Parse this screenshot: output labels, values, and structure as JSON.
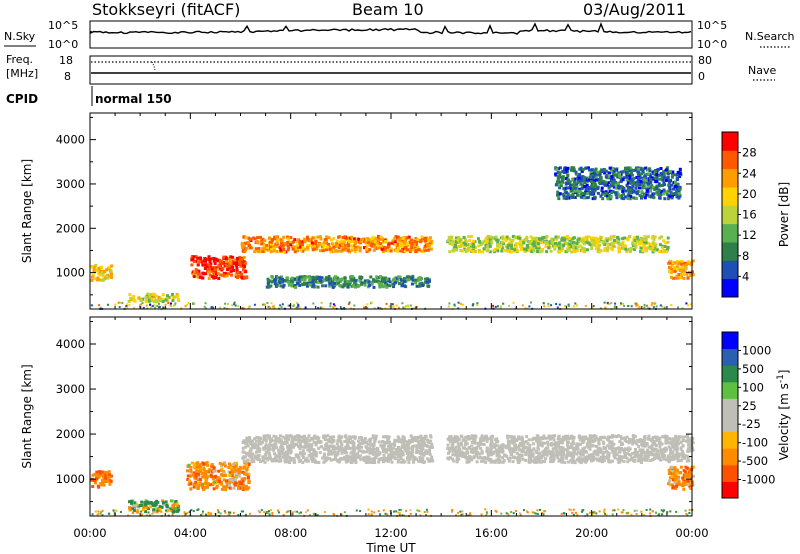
{
  "header": {
    "station": "Stokkseyri (fitACF)",
    "beam": "Beam 10",
    "date": "03/Aug/2011"
  },
  "side_labels": {
    "nsky": "N.Sky",
    "freq": "Freq.",
    "freq_unit": "[MHz]",
    "cpid": "CPID",
    "nsearch": "N.Search",
    "nave": "Nave",
    "nsky_top": "10^5",
    "nsky_bottom": "10^0",
    "nsearch_top": "10^5",
    "nsearch_bottom": "10^0",
    "freq_top": "18",
    "freq_bottom": "8",
    "nave_top": "80",
    "nave_bottom": "0"
  },
  "cpid_text": "normal 150",
  "colors": {
    "power_scale": [
      "#0000ff",
      "#1e4fb4",
      "#2f7f4a",
      "#59b050",
      "#bcd33a",
      "#ffd200",
      "#ff9c00",
      "#ff5a00",
      "#ff0000"
    ],
    "velocity_scale": [
      "#ff0000",
      "#ff5000",
      "#ff8c00",
      "#ffb400",
      "#bfbfb7",
      "#bfbfb7",
      "#5ec040",
      "#2b8a4a",
      "#2b5fb0",
      "#0000ff"
    ]
  },
  "chart_data": [
    {
      "type": "heatmap",
      "name": "power",
      "ylabel": "Slant Range [km]",
      "xlabel": "",
      "yticks": [
        1000,
        2000,
        3000,
        4000
      ],
      "ylim": [
        180,
        4600
      ],
      "xlim": [
        "00:00",
        "24:00"
      ],
      "colorbar": {
        "label": "Power [dB]",
        "ticks": [
          "4",
          "8",
          "12",
          "16",
          "20",
          "24",
          "28"
        ],
        "range": [
          0,
          32
        ]
      },
      "regions": [
        {
          "t0": 4.0,
          "t1": 6.2,
          "r0": 900,
          "r1": 1400,
          "value": 29
        },
        {
          "t0": 6.0,
          "t1": 13.6,
          "r0": 1500,
          "r1": 1850,
          "value": 24
        },
        {
          "t0": 14.2,
          "t1": 23.0,
          "r0": 1500,
          "r1": 1850,
          "value": 16
        },
        {
          "t0": 23.0,
          "t1": 24.0,
          "r0": 900,
          "r1": 1300,
          "value": 22
        },
        {
          "t0": 0.0,
          "t1": 0.8,
          "r0": 850,
          "r1": 1200,
          "value": 20
        },
        {
          "t0": 1.5,
          "t1": 3.5,
          "r0": 380,
          "r1": 550,
          "value": 17
        },
        {
          "t0": 7.0,
          "t1": 13.5,
          "r0": 700,
          "r1": 950,
          "value": 9
        },
        {
          "t0": 18.5,
          "t1": 23.5,
          "r0": 2700,
          "r1": 3400,
          "value": 7
        }
      ]
    },
    {
      "type": "heatmap",
      "name": "velocity",
      "ylabel": "Slant Range [km]",
      "xlabel": "Time UT",
      "yticks": [
        1000,
        2000,
        3000,
        4000
      ],
      "ylim": [
        180,
        4600
      ],
      "xticks": [
        "00:00",
        "04:00",
        "08:00",
        "12:00",
        "16:00",
        "20:00",
        "00:00"
      ],
      "xlim": [
        "00:00",
        "24:00"
      ],
      "colorbar": {
        "label": "Velocity [m s-1]",
        "label_main": "Velocity [m s",
        "label_sup": "-1",
        "label_end": "]",
        "ticks": [
          "-1000",
          "-500",
          "-100",
          "-25",
          "25",
          "100",
          "500",
          "1000"
        ]
      },
      "regions": [
        {
          "t0": 3.8,
          "t1": 6.3,
          "r0": 800,
          "r1": 1400,
          "value": -300
        },
        {
          "t0": 6.0,
          "t1": 13.6,
          "r0": 1400,
          "r1": 2000,
          "value": 0
        },
        {
          "t0": 14.2,
          "t1": 24.0,
          "r0": 1400,
          "r1": 2000,
          "value": 0
        },
        {
          "t0": 0.0,
          "t1": 0.8,
          "r0": 850,
          "r1": 1200,
          "value": -400
        },
        {
          "t0": 1.5,
          "t1": 3.5,
          "r0": 300,
          "r1": 550,
          "value": 150
        },
        {
          "t0": 23.0,
          "t1": 24.0,
          "r0": 800,
          "r1": 1300,
          "value": -300
        }
      ]
    }
  ]
}
